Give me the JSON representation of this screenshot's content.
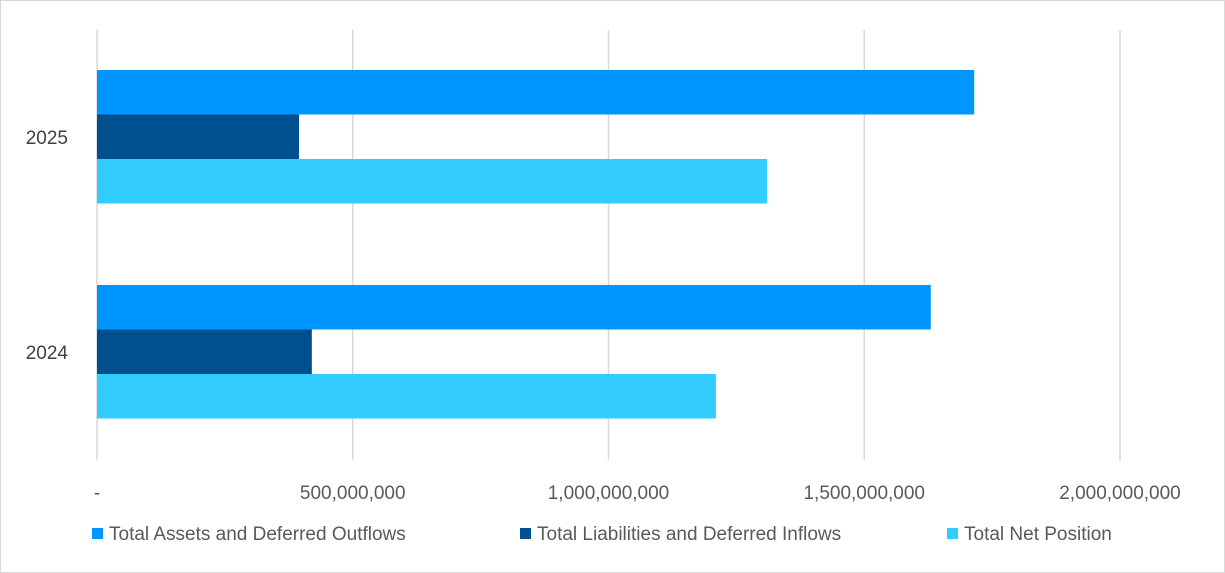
{
  "chart_data": {
    "type": "bar",
    "orientation": "horizontal",
    "categories": [
      "2025",
      "2024"
    ],
    "series": [
      {
        "name": "Total Assets and Deferred Outflows",
        "values": [
          1715000000,
          1630000000
        ],
        "color": "#0096ff"
      },
      {
        "name": "Total Liabilities and Deferred Inflows",
        "values": [
          395000000,
          420000000
        ],
        "color": "#004f8f"
      },
      {
        "name": "Total Net Position",
        "values": [
          1310000000,
          1210000000
        ],
        "color": "#33ccff"
      }
    ],
    "x_ticks": [
      "-",
      "500,000,000",
      "1,000,000,000",
      "1,500,000,000",
      "2,000,000,000"
    ],
    "xlim": [
      0,
      2000000000
    ],
    "title": "",
    "xlabel": "",
    "ylabel": "",
    "grid": "vertical",
    "legend_position": "bottom",
    "gridline_color": "#d9d9d9"
  }
}
